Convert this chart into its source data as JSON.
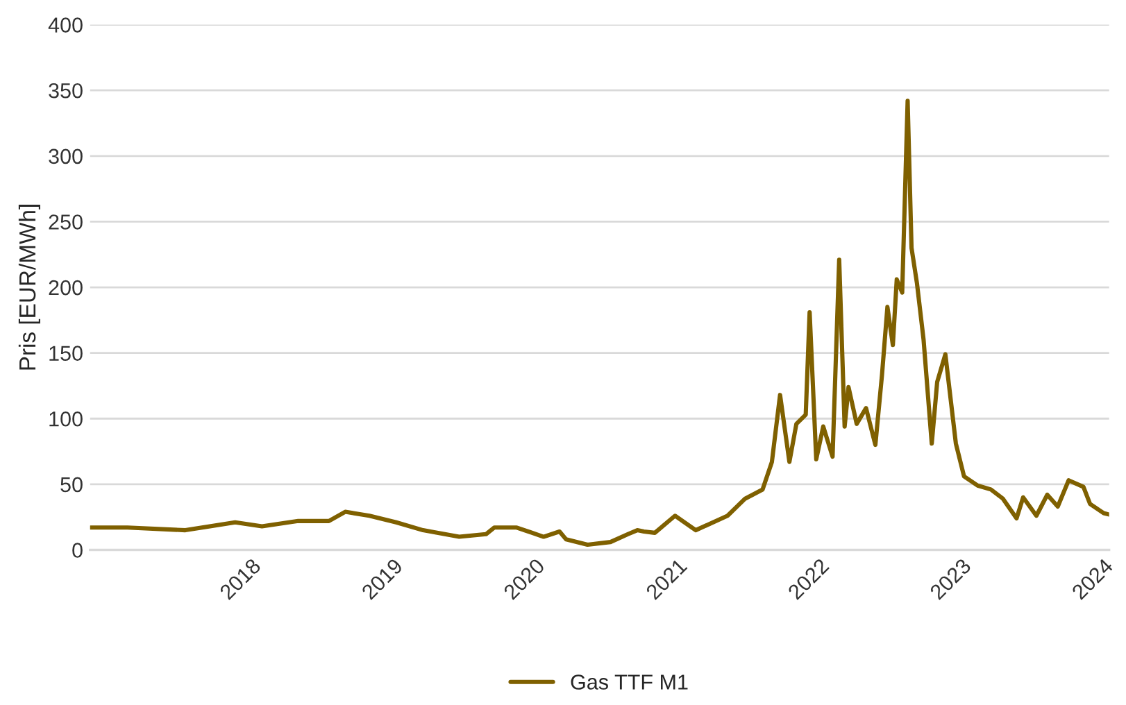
{
  "chart_data": {
    "type": "line",
    "ylabel": "Pris [EUR/MWh]",
    "xlim": [
      "2016-11-13",
      "2024-01-16"
    ],
    "ylim": [
      0,
      400
    ],
    "xticks": [
      {
        "value": "2018-01-01",
        "label": "2018"
      },
      {
        "value": "2019-01-01",
        "label": "2019"
      },
      {
        "value": "2020-01-01",
        "label": "2020"
      },
      {
        "value": "2021-01-01",
        "label": "2021"
      },
      {
        "value": "2022-01-01",
        "label": "2022"
      },
      {
        "value": "2023-01-01",
        "label": "2023"
      },
      {
        "value": "2024-01-01",
        "label": "2024"
      }
    ],
    "yticks": [
      0,
      50,
      100,
      150,
      200,
      250,
      300,
      350,
      400
    ],
    "grid": "y",
    "legend": "bottom",
    "marker": "none",
    "line_style": "solid",
    "x": [
      "2016-11-14",
      "2017-02-17",
      "2017-07-16",
      "2017-11-21",
      "2018-01-29",
      "2018-05-02",
      "2018-07-20",
      "2018-08-31",
      "2018-11-01",
      "2019-01-09",
      "2019-03-19",
      "2019-06-20",
      "2019-08-28",
      "2019-09-18",
      "2019-11-15",
      "2020-01-23",
      "2020-03-04",
      "2020-03-21",
      "2020-05-15",
      "2020-07-13",
      "2020-08-27",
      "2020-09-20",
      "2020-10-07",
      "2020-11-04",
      "2020-12-26",
      "2021-02-17",
      "2021-05-10",
      "2021-06-24",
      "2021-08-08",
      "2021-09-01",
      "2021-09-22",
      "2021-10-16",
      "2021-11-03",
      "2021-11-27",
      "2021-12-07",
      "2021-12-24",
      "2022-01-11",
      "2022-02-04",
      "2022-02-21",
      "2022-03-07",
      "2022-03-17",
      "2022-04-07",
      "2022-05-01",
      "2022-05-25",
      "2022-06-11",
      "2022-06-25",
      "2022-07-09",
      "2022-07-19",
      "2022-08-02",
      "2022-08-16",
      "2022-08-26",
      "2022-09-09",
      "2022-09-26",
      "2022-10-17",
      "2022-10-31",
      "2022-11-21",
      "2022-12-18",
      "2023-01-08",
      "2023-02-12",
      "2023-03-18",
      "2023-04-18",
      "2023-05-23",
      "2023-06-09",
      "2023-07-13",
      "2023-08-10",
      "2023-09-06",
      "2023-10-04",
      "2023-11-11",
      "2023-11-28",
      "2024-01-02",
      "2024-01-15"
    ],
    "series": [
      {
        "name": "Gas TTF M1",
        "color": "#7f6000",
        "values": [
          17,
          17,
          15,
          21,
          18,
          22,
          22,
          29,
          26,
          21,
          15,
          10,
          12,
          17,
          17,
          10,
          14,
          8,
          4,
          6,
          12,
          15,
          14,
          13,
          26,
          15,
          26,
          39,
          46,
          67,
          118,
          67,
          96,
          103,
          181,
          69,
          94,
          71,
          221,
          94,
          124,
          96,
          108,
          80,
          133,
          185,
          156,
          206,
          196,
          342,
          230,
          203,
          160,
          81,
          128,
          149,
          81,
          56,
          49,
          46,
          39,
          24,
          40,
          26,
          42,
          33,
          53,
          48,
          35,
          28,
          27
        ]
      }
    ]
  }
}
